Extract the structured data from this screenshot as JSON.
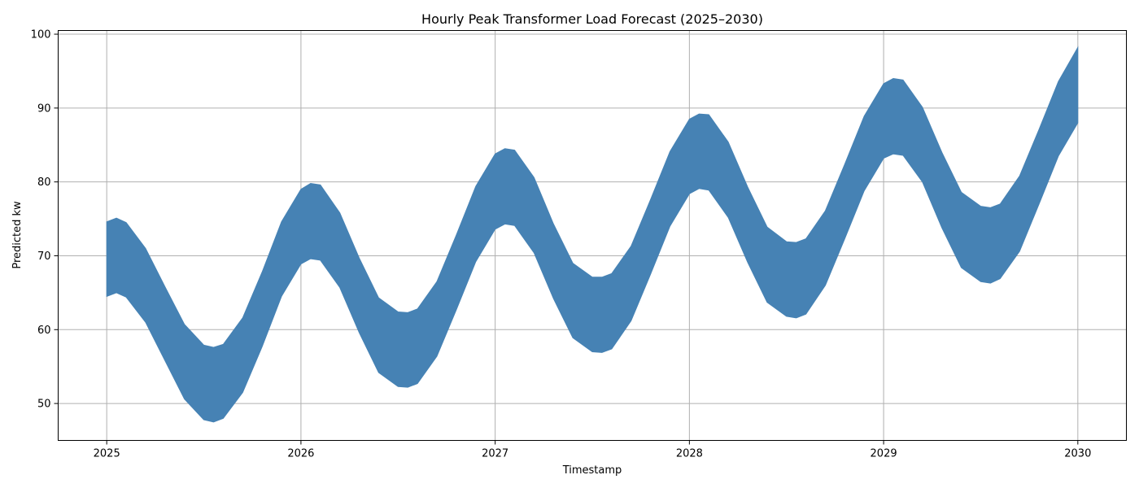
{
  "chart_data": {
    "type": "area",
    "title": "Hourly Peak Transformer Load Forecast (2025–2030)",
    "xlabel": "Timestamp",
    "ylabel": "Predicted kw",
    "xlim": [
      2024.75,
      2030.25
    ],
    "ylim": [
      45,
      100.5
    ],
    "x_ticks": [
      2025,
      2026,
      2027,
      2028,
      2029,
      2030
    ],
    "y_ticks": [
      50,
      60,
      70,
      80,
      90,
      100
    ],
    "grid": true,
    "series": [
      {
        "color": "#4682b4",
        "x": [
          2025.0,
          2025.05,
          2025.1,
          2025.2,
          2025.3,
          2025.4,
          2025.5,
          2025.55,
          2025.6,
          2025.7,
          2025.8,
          2025.9,
          2026.0,
          2026.05,
          2026.1,
          2026.2,
          2026.3,
          2026.4,
          2026.5,
          2026.55,
          2026.6,
          2026.7,
          2026.8,
          2026.9,
          2027.0,
          2027.05,
          2027.1,
          2027.2,
          2027.3,
          2027.4,
          2027.5,
          2027.55,
          2027.6,
          2027.7,
          2027.8,
          2027.9,
          2028.0,
          2028.05,
          2028.1,
          2028.2,
          2028.3,
          2028.4,
          2028.5,
          2028.55,
          2028.6,
          2028.7,
          2028.8,
          2028.9,
          2029.0,
          2029.05,
          2029.1,
          2029.2,
          2029.3,
          2029.4,
          2029.5,
          2029.55,
          2029.6,
          2029.7,
          2029.8,
          2029.9,
          2030.0
        ],
        "upper": [
          74.6,
          75.1,
          74.5,
          71.0,
          65.8,
          60.7,
          57.9,
          57.6,
          58.0,
          61.6,
          67.8,
          74.6,
          79.0,
          79.8,
          79.6,
          75.8,
          69.7,
          64.3,
          62.4,
          62.3,
          62.8,
          66.5,
          72.8,
          79.4,
          83.8,
          84.5,
          84.3,
          80.6,
          74.3,
          69.0,
          67.1,
          67.1,
          67.6,
          71.3,
          77.6,
          84.1,
          88.5,
          89.2,
          89.1,
          85.4,
          79.3,
          73.9,
          71.9,
          71.8,
          72.3,
          76.1,
          82.4,
          88.9,
          93.3,
          94.0,
          93.8,
          90.1,
          84.0,
          78.6,
          76.7,
          76.5,
          77.0,
          80.8,
          87.1,
          93.6,
          98.2
        ],
        "lower": [
          64.5,
          65.0,
          64.4,
          61.0,
          55.8,
          50.6,
          47.8,
          47.5,
          48.0,
          51.5,
          57.7,
          64.5,
          68.9,
          69.6,
          69.4,
          65.7,
          59.6,
          54.2,
          52.3,
          52.2,
          52.7,
          56.4,
          62.7,
          69.2,
          73.6,
          74.3,
          74.1,
          70.4,
          64.2,
          58.9,
          57.0,
          56.9,
          57.4,
          61.2,
          67.5,
          74.0,
          78.4,
          79.1,
          78.9,
          75.2,
          69.1,
          63.7,
          61.8,
          61.6,
          62.1,
          66.0,
          72.3,
          78.8,
          83.2,
          83.8,
          83.6,
          80.0,
          73.8,
          68.4,
          66.5,
          66.3,
          66.9,
          70.6,
          77.0,
          83.5,
          88.0
        ]
      }
    ]
  }
}
